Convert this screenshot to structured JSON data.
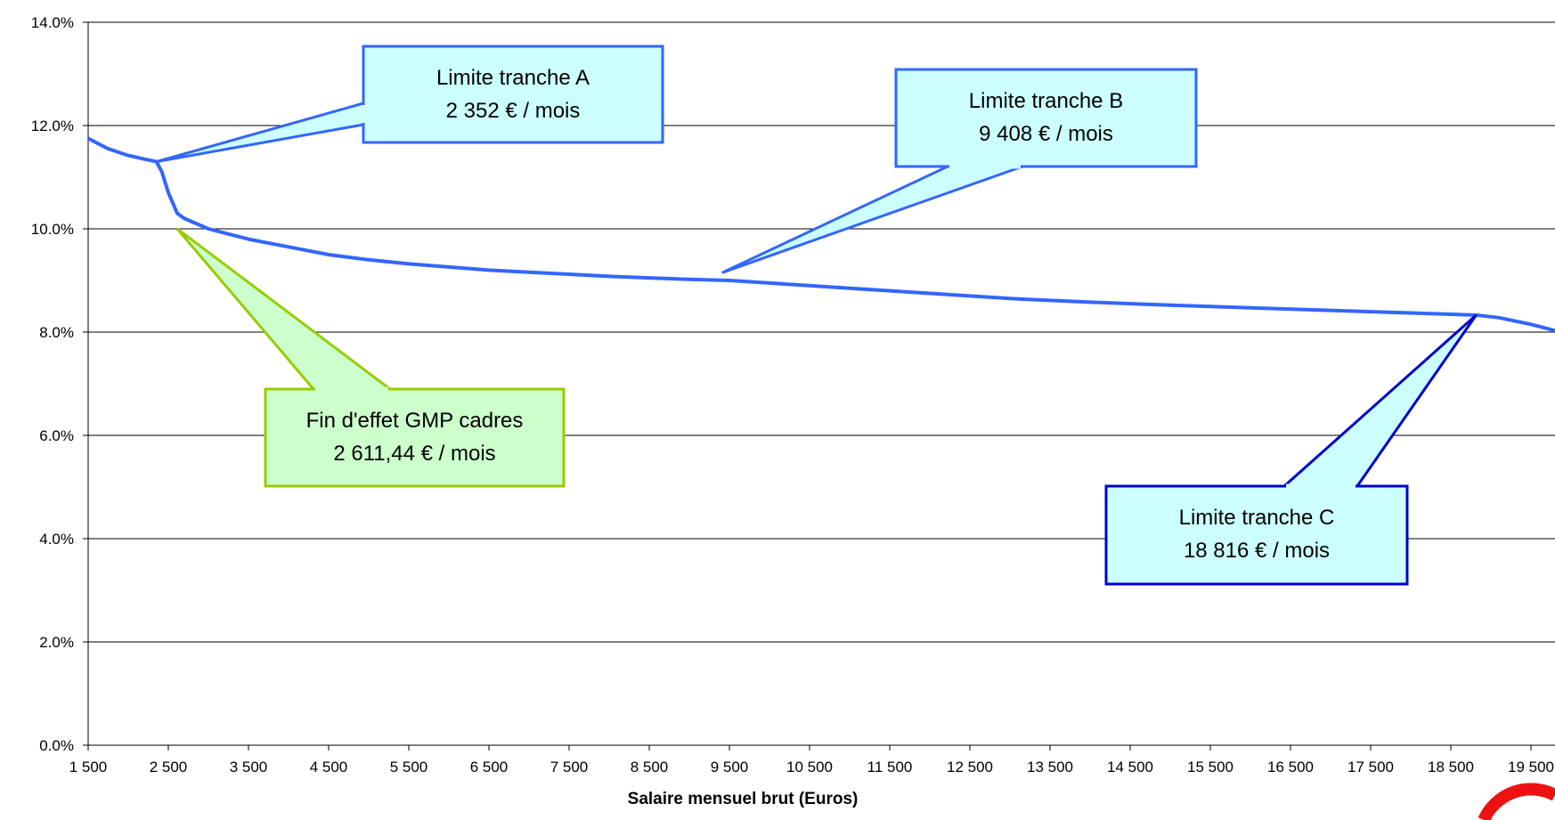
{
  "chart_data": {
    "type": "line",
    "title": "",
    "xlabel": "Salaire mensuel brut (Euros)",
    "ylabel": "",
    "xlim": [
      1500,
      20500
    ],
    "ylim": [
      0,
      14
    ],
    "x_ticks": [
      1500,
      2500,
      3500,
      4500,
      5500,
      6500,
      7500,
      8500,
      9500,
      10500,
      11500,
      12500,
      13500,
      14500,
      15500,
      16500,
      17500,
      18500,
      19500
    ],
    "x_tick_labels": [
      "1 500",
      "2 500",
      "3 500",
      "4 500",
      "5 500",
      "6 500",
      "7 500",
      "8 500",
      "9 500",
      "10 500",
      "11 500",
      "12 500",
      "13 500",
      "14 500",
      "15 500",
      "16 500",
      "17 500",
      "18 500",
      "19 500"
    ],
    "y_ticks": [
      0,
      2,
      4,
      6,
      8,
      10,
      12,
      14
    ],
    "y_tick_labels": [
      "0.0%",
      "2.0%",
      "4.0%",
      "6.0%",
      "8.0%",
      "10.0%",
      "12.0%",
      "14.0%"
    ],
    "grid": "horizontal",
    "legend": "none",
    "series": [
      {
        "color": "#3366ff",
        "x": [
          1500,
          1750,
          2000,
          2200,
          2352,
          2420,
          2500,
          2611,
          2700,
          3000,
          3500,
          4000,
          4500,
          5000,
          5500,
          6000,
          6500,
          7000,
          7500,
          8000,
          8500,
          9000,
          9500,
          10000,
          11000,
          12000,
          13000,
          14000,
          15000,
          16000,
          17000,
          18000,
          18816,
          19100,
          19500,
          20000,
          20500
        ],
        "y": [
          11.75,
          11.55,
          11.42,
          11.35,
          11.3,
          11.1,
          10.7,
          10.3,
          10.2,
          10.0,
          9.8,
          9.65,
          9.5,
          9.4,
          9.32,
          9.26,
          9.2,
          9.16,
          9.12,
          9.08,
          9.05,
          9.02,
          9.0,
          8.95,
          8.85,
          8.75,
          8.65,
          8.58,
          8.52,
          8.47,
          8.42,
          8.37,
          8.33,
          8.28,
          8.15,
          7.95,
          7.8
        ]
      }
    ],
    "annotations": [
      {
        "line1": "Limite tranche A",
        "line2": "2 352 € / mois",
        "x": 2352,
        "y": 11.3,
        "fill": "#ccffff",
        "stroke": "#3366ff"
      },
      {
        "line1": "Fin d'effet GMP cadres",
        "line2": "2 611,44 € / mois",
        "x": 2611,
        "y": 10.0,
        "fill": "#ccffcc",
        "stroke": "#99cc00"
      },
      {
        "line1": "Limite tranche B",
        "line2": "9 408 € / mois",
        "x": 9408,
        "y": 9.15,
        "fill": "#ccffff",
        "stroke": "#3366ff"
      },
      {
        "line1": "Limite tranche C",
        "line2": "18 816 € / mois",
        "x": 18816,
        "y": 8.33,
        "fill": "#ccffff",
        "stroke": "#0000cc"
      }
    ]
  }
}
